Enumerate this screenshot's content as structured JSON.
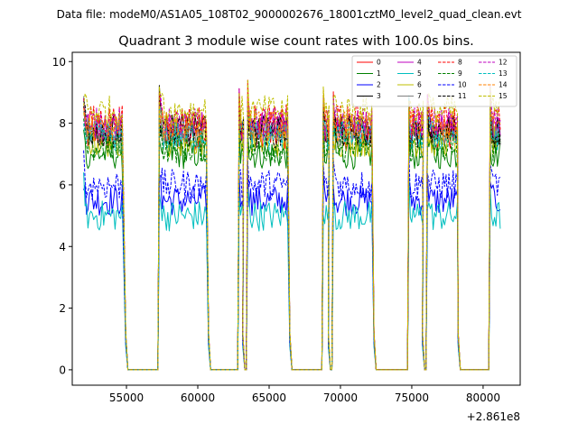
{
  "figure": {
    "suptitle": "Data file: modeM0/AS1A05_108T02_9000002676_18001cztM0_level2_quad_clean.evt"
  },
  "chart_data": {
    "type": "line",
    "title": "Quadrant 3 module wise count rates with 100.0s bins.",
    "xlabel": "",
    "ylabel": "",
    "x_offset_label": "+2.861e8",
    "xlim": [
      51200,
      82600
    ],
    "ylim": [
      -0.5,
      10.3
    ],
    "xticks": [
      55000,
      60000,
      65000,
      70000,
      75000,
      80000
    ],
    "xtick_labels": [
      "55000",
      "60000",
      "65000",
      "70000",
      "75000",
      "80000"
    ],
    "yticks": [
      0,
      2,
      4,
      6,
      8,
      10
    ],
    "ytick_labels": [
      "0",
      "2",
      "4",
      "6",
      "8",
      "10"
    ],
    "legend_position": "top-right",
    "legend_columns": 4,
    "bin_seconds": 100,
    "x_start": 52000,
    "x_end": 81200,
    "orbit_segments": [
      {
        "on": [
          52000,
          54700
        ],
        "off": [
          55100,
          57200
        ]
      },
      {
        "on": [
          57300,
          60600
        ],
        "off": [
          60900,
          62800
        ]
      },
      {
        "on": [
          62900,
          63200
        ],
        "off": [
          63300,
          63400
        ]
      },
      {
        "on": [
          63500,
          66300
        ],
        "off": [
          66600,
          68700
        ]
      },
      {
        "on": [
          68800,
          69200
        ],
        "off": [
          69300,
          69400
        ]
      },
      {
        "on": [
          69500,
          72200
        ],
        "off": [
          72500,
          74700
        ]
      },
      {
        "on": [
          74800,
          75800
        ],
        "off": [
          75900,
          76000
        ]
      },
      {
        "on": [
          76100,
          78200
        ],
        "off": [
          78400,
          80400
        ]
      },
      {
        "on": [
          80500,
          81200
        ],
        "off": []
      }
    ],
    "series": [
      {
        "name": "0",
        "color": "#ff0000",
        "dash": "solid",
        "mean": 7.6
      },
      {
        "name": "1",
        "color": "#008000",
        "dash": "solid",
        "mean": 7.0
      },
      {
        "name": "2",
        "color": "#0000ff",
        "dash": "solid",
        "mean": 5.5
      },
      {
        "name": "3",
        "color": "#000000",
        "dash": "solid",
        "mean": 7.8
      },
      {
        "name": "4",
        "color": "#bf00bf",
        "dash": "solid",
        "mean": 7.9
      },
      {
        "name": "5",
        "color": "#00bfbf",
        "dash": "solid",
        "mean": 5.0
      },
      {
        "name": "6",
        "color": "#bfbf00",
        "dash": "solid",
        "mean": 7.4
      },
      {
        "name": "7",
        "color": "#808080",
        "dash": "solid",
        "mean": 7.7
      },
      {
        "name": "8",
        "color": "#ff0000",
        "dash": "dashed",
        "mean": 8.1
      },
      {
        "name": "9",
        "color": "#008000",
        "dash": "dashed",
        "mean": 7.2
      },
      {
        "name": "10",
        "color": "#0000ff",
        "dash": "dashed",
        "mean": 6.0
      },
      {
        "name": "11",
        "color": "#000000",
        "dash": "dashed",
        "mean": 7.7
      },
      {
        "name": "12",
        "color": "#bf00bf",
        "dash": "dashed",
        "mean": 8.0
      },
      {
        "name": "13",
        "color": "#00bfbf",
        "dash": "dashed",
        "mean": 7.6
      },
      {
        "name": "14",
        "color": "#ff8000",
        "dash": "dashed",
        "mean": 7.9
      },
      {
        "name": "15",
        "color": "#bfbf00",
        "dash": "dashed",
        "mean": 8.4
      }
    ]
  }
}
